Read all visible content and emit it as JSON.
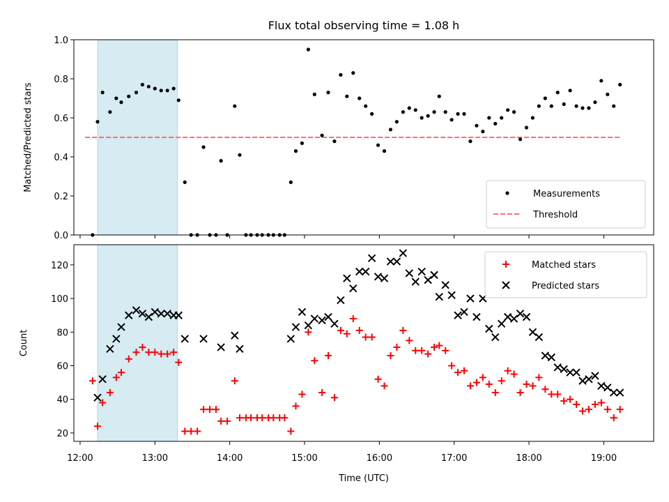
{
  "colors": {
    "shade": "#add8e6",
    "measure": "#000000",
    "threshold": "#ff6f6f",
    "matched": "#ff0000",
    "predicted": "#000000"
  },
  "chart_data": [
    {
      "type": "scatter",
      "title": "Flux total observing time = 1.08 h",
      "xlabel": "",
      "ylabel": "Matched/Predicted stars",
      "xlim": [
        "11:55",
        "19:40"
      ],
      "ylim": [
        0,
        1.0
      ],
      "yticks": [
        0.0,
        0.2,
        0.4,
        0.6,
        0.8,
        1.0
      ],
      "ytick_labels": [
        "0.0",
        "0.2",
        "0.4",
        "0.6",
        "0.8",
        "1.0"
      ],
      "xticks": [
        "12:00",
        "13:00",
        "14:00",
        "15:00",
        "16:00",
        "17:00",
        "18:00",
        "19:00"
      ],
      "shaded_region": [
        "12:14",
        "13:18"
      ],
      "legend": {
        "position": "lower right",
        "entries": [
          "Measurements",
          "Threshold"
        ]
      },
      "threshold": {
        "name": "Threshold",
        "y": 0.5,
        "x": [
          "12:04",
          "19:14"
        ]
      },
      "series": [
        {
          "name": "Measurements",
          "points": [
            [
              "12:10",
              0.0
            ],
            [
              "12:14",
              0.58
            ],
            [
              "12:18",
              0.73
            ],
            [
              "12:24",
              0.63
            ],
            [
              "12:29",
              0.7
            ],
            [
              "12:33",
              0.68
            ],
            [
              "12:39",
              0.71
            ],
            [
              "12:45",
              0.73
            ],
            [
              "12:50",
              0.77
            ],
            [
              "12:55",
              0.76
            ],
            [
              "13:00",
              0.75
            ],
            [
              "13:05",
              0.74
            ],
            [
              "13:10",
              0.74
            ],
            [
              "13:15",
              0.75
            ],
            [
              "13:19",
              0.69
            ],
            [
              "13:24",
              0.27
            ],
            [
              "13:29",
              0.0
            ],
            [
              "13:34",
              0.0
            ],
            [
              "13:39",
              0.45
            ],
            [
              "13:44",
              0.0
            ],
            [
              "13:49",
              0.0
            ],
            [
              "13:53",
              0.38
            ],
            [
              "13:58",
              0.0
            ],
            [
              "14:04",
              0.66
            ],
            [
              "14:08",
              0.41
            ],
            [
              "14:13",
              0.0
            ],
            [
              "14:17",
              0.0
            ],
            [
              "14:22",
              0.0
            ],
            [
              "14:26",
              0.0
            ],
            [
              "14:31",
              0.0
            ],
            [
              "14:35",
              0.0
            ],
            [
              "14:40",
              0.0
            ],
            [
              "14:44",
              0.0
            ],
            [
              "14:49",
              0.27
            ],
            [
              "14:53",
              0.43
            ],
            [
              "14:58",
              0.47
            ],
            [
              "15:03",
              0.95
            ],
            [
              "15:08",
              0.72
            ],
            [
              "15:14",
              0.51
            ],
            [
              "15:19",
              0.73
            ],
            [
              "15:24",
              0.48
            ],
            [
              "15:29",
              0.82
            ],
            [
              "15:34",
              0.71
            ],
            [
              "15:39",
              0.83
            ],
            [
              "15:44",
              0.7
            ],
            [
              "15:49",
              0.66
            ],
            [
              "15:54",
              0.62
            ],
            [
              "15:59",
              0.46
            ],
            [
              "16:04",
              0.43
            ],
            [
              "16:09",
              0.54
            ],
            [
              "16:14",
              0.58
            ],
            [
              "16:19",
              0.63
            ],
            [
              "16:24",
              0.65
            ],
            [
              "16:29",
              0.64
            ],
            [
              "16:34",
              0.6
            ],
            [
              "16:39",
              0.61
            ],
            [
              "16:44",
              0.63
            ],
            [
              "16:48",
              0.71
            ],
            [
              "16:53",
              0.63
            ],
            [
              "16:58",
              0.59
            ],
            [
              "17:03",
              0.62
            ],
            [
              "17:08",
              0.62
            ],
            [
              "17:13",
              0.48
            ],
            [
              "17:18",
              0.56
            ],
            [
              "17:23",
              0.53
            ],
            [
              "17:28",
              0.6
            ],
            [
              "17:33",
              0.57
            ],
            [
              "17:38",
              0.6
            ],
            [
              "17:43",
              0.64
            ],
            [
              "17:48",
              0.63
            ],
            [
              "17:53",
              0.49
            ],
            [
              "17:58",
              0.55
            ],
            [
              "18:03",
              0.6
            ],
            [
              "18:08",
              0.66
            ],
            [
              "18:13",
              0.7
            ],
            [
              "18:18",
              0.66
            ],
            [
              "18:23",
              0.73
            ],
            [
              "18:28",
              0.67
            ],
            [
              "18:33",
              0.74
            ],
            [
              "18:38",
              0.66
            ],
            [
              "18:43",
              0.65
            ],
            [
              "18:48",
              0.65
            ],
            [
              "18:53",
              0.68
            ],
            [
              "18:58",
              0.79
            ],
            [
              "19:03",
              0.72
            ],
            [
              "19:08",
              0.66
            ],
            [
              "19:13",
              0.77
            ]
          ]
        }
      ]
    },
    {
      "type": "scatter",
      "title": "",
      "xlabel": "Time (UTC)",
      "ylabel": "Count",
      "xlim": [
        "11:55",
        "19:40"
      ],
      "ylim": [
        15,
        132
      ],
      "yticks": [
        20,
        40,
        60,
        80,
        100,
        120
      ],
      "ytick_labels": [
        "20",
        "40",
        "60",
        "80",
        "100",
        "120"
      ],
      "xticks": [
        "12:00",
        "13:00",
        "14:00",
        "15:00",
        "16:00",
        "17:00",
        "18:00",
        "19:00"
      ],
      "shaded_region": [
        "12:14",
        "13:18"
      ],
      "legend": {
        "position": "upper right",
        "entries": [
          "Matched stars",
          "Predicted stars"
        ]
      },
      "series": [
        {
          "name": "Matched stars",
          "marker": "plus",
          "points": [
            [
              "12:10",
              51
            ],
            [
              "12:14",
              24
            ],
            [
              "12:18",
              38
            ],
            [
              "12:24",
              44
            ],
            [
              "12:29",
              53
            ],
            [
              "12:33",
              56
            ],
            [
              "12:39",
              64
            ],
            [
              "12:45",
              68
            ],
            [
              "12:50",
              71
            ],
            [
              "12:55",
              68
            ],
            [
              "13:00",
              68
            ],
            [
              "13:05",
              67
            ],
            [
              "13:10",
              67
            ],
            [
              "13:15",
              68
            ],
            [
              "13:19",
              62
            ],
            [
              "13:24",
              21
            ],
            [
              "13:29",
              21
            ],
            [
              "13:34",
              21
            ],
            [
              "13:39",
              34
            ],
            [
              "13:44",
              34
            ],
            [
              "13:49",
              34
            ],
            [
              "13:53",
              27
            ],
            [
              "13:58",
              27
            ],
            [
              "14:04",
              51
            ],
            [
              "14:08",
              29
            ],
            [
              "14:13",
              29
            ],
            [
              "14:17",
              29
            ],
            [
              "14:22",
              29
            ],
            [
              "14:26",
              29
            ],
            [
              "14:31",
              29
            ],
            [
              "14:35",
              29
            ],
            [
              "14:40",
              29
            ],
            [
              "14:44",
              29
            ],
            [
              "14:49",
              21
            ],
            [
              "14:53",
              36
            ],
            [
              "14:58",
              43
            ],
            [
              "15:03",
              80
            ],
            [
              "15:08",
              63
            ],
            [
              "15:14",
              44
            ],
            [
              "15:19",
              66
            ],
            [
              "15:24",
              41
            ],
            [
              "15:29",
              81
            ],
            [
              "15:34",
              79
            ],
            [
              "15:39",
              88
            ],
            [
              "15:44",
              81
            ],
            [
              "15:49",
              77
            ],
            [
              "15:54",
              77
            ],
            [
              "15:59",
              52
            ],
            [
              "16:04",
              48
            ],
            [
              "16:09",
              66
            ],
            [
              "16:14",
              71
            ],
            [
              "16:19",
              81
            ],
            [
              "16:24",
              75
            ],
            [
              "16:29",
              69
            ],
            [
              "16:34",
              69
            ],
            [
              "16:39",
              67
            ],
            [
              "16:44",
              71
            ],
            [
              "16:48",
              72
            ],
            [
              "16:53",
              69
            ],
            [
              "16:58",
              60
            ],
            [
              "17:03",
              56
            ],
            [
              "17:08",
              57
            ],
            [
              "17:13",
              48
            ],
            [
              "17:18",
              50
            ],
            [
              "17:23",
              53
            ],
            [
              "17:28",
              49
            ],
            [
              "17:33",
              44
            ],
            [
              "17:38",
              51
            ],
            [
              "17:43",
              57
            ],
            [
              "17:48",
              55
            ],
            [
              "17:53",
              44
            ],
            [
              "17:58",
              49
            ],
            [
              "18:03",
              48
            ],
            [
              "18:08",
              53
            ],
            [
              "18:13",
              46
            ],
            [
              "18:18",
              43
            ],
            [
              "18:23",
              43
            ],
            [
              "18:28",
              39
            ],
            [
              "18:33",
              40
            ],
            [
              "18:38",
              37
            ],
            [
              "18:43",
              33
            ],
            [
              "18:48",
              34
            ],
            [
              "18:53",
              37
            ],
            [
              "18:58",
              38
            ],
            [
              "19:03",
              34
            ],
            [
              "19:08",
              29
            ],
            [
              "19:13",
              34
            ]
          ]
        },
        {
          "name": "Predicted stars",
          "marker": "x",
          "points": [
            [
              "12:14",
              41
            ],
            [
              "12:18",
              52
            ],
            [
              "12:24",
              70
            ],
            [
              "12:29",
              76
            ],
            [
              "12:33",
              83
            ],
            [
              "12:39",
              90
            ],
            [
              "12:45",
              93
            ],
            [
              "12:50",
              91
            ],
            [
              "12:55",
              89
            ],
            [
              "13:00",
              92
            ],
            [
              "13:05",
              91
            ],
            [
              "13:10",
              91
            ],
            [
              "13:15",
              90
            ],
            [
              "13:19",
              90
            ],
            [
              "13:24",
              76
            ],
            [
              "13:39",
              76
            ],
            [
              "13:53",
              71
            ],
            [
              "14:04",
              78
            ],
            [
              "14:08",
              70
            ],
            [
              "14:49",
              76
            ],
            [
              "14:53",
              83
            ],
            [
              "14:58",
              92
            ],
            [
              "15:03",
              84
            ],
            [
              "15:08",
              88
            ],
            [
              "15:14",
              87
            ],
            [
              "15:19",
              89
            ],
            [
              "15:24",
              85
            ],
            [
              "15:29",
              99
            ],
            [
              "15:34",
              112
            ],
            [
              "15:39",
              106
            ],
            [
              "15:44",
              116
            ],
            [
              "15:49",
              116
            ],
            [
              "15:54",
              124
            ],
            [
              "15:59",
              113
            ],
            [
              "16:04",
              112
            ],
            [
              "16:09",
              122
            ],
            [
              "16:14",
              122
            ],
            [
              "16:19",
              127
            ],
            [
              "16:24",
              115
            ],
            [
              "16:29",
              110
            ],
            [
              "16:34",
              116
            ],
            [
              "16:39",
              111
            ],
            [
              "16:44",
              114
            ],
            [
              "16:48",
              101
            ],
            [
              "16:53",
              108
            ],
            [
              "16:58",
              102
            ],
            [
              "17:03",
              90
            ],
            [
              "17:08",
              92
            ],
            [
              "17:13",
              100
            ],
            [
              "17:18",
              89
            ],
            [
              "17:23",
              100
            ],
            [
              "17:28",
              82
            ],
            [
              "17:33",
              77
            ],
            [
              "17:38",
              85
            ],
            [
              "17:43",
              89
            ],
            [
              "17:48",
              88
            ],
            [
              "17:53",
              91
            ],
            [
              "17:58",
              89
            ],
            [
              "18:03",
              80
            ],
            [
              "18:08",
              77
            ],
            [
              "18:13",
              66
            ],
            [
              "18:18",
              65
            ],
            [
              "18:23",
              59
            ],
            [
              "18:28",
              58
            ],
            [
              "18:33",
              56
            ],
            [
              "18:38",
              56
            ],
            [
              "18:43",
              51
            ],
            [
              "18:48",
              52
            ],
            [
              "18:53",
              54
            ],
            [
              "18:58",
              48
            ],
            [
              "19:03",
              47
            ],
            [
              "19:08",
              44
            ],
            [
              "19:13",
              44
            ]
          ]
        }
      ]
    }
  ]
}
